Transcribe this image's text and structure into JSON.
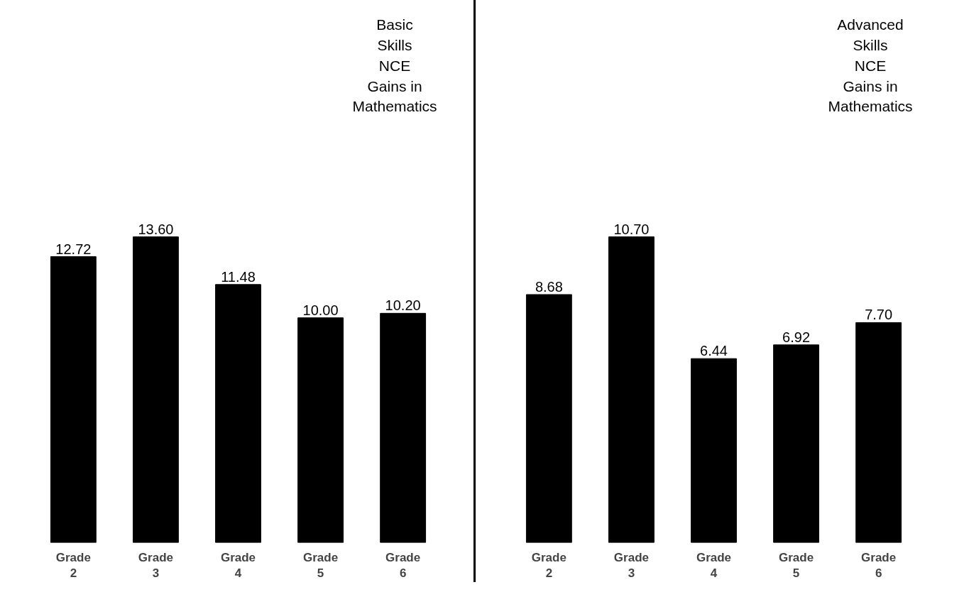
{
  "chart_data": [
    {
      "type": "bar",
      "title": "Basic\nSkills\nNCE\nGains in\nMathematics",
      "categories": [
        "Grade 2",
        "Grade 3",
        "Grade 4",
        "Grade 5",
        "Grade 6"
      ],
      "values": [
        12.72,
        13.6,
        11.48,
        10.0,
        10.2
      ],
      "value_labels": [
        "12.72",
        "13.60",
        "11.48",
        "10.00",
        "10.20"
      ],
      "color": "#000000",
      "grid": false,
      "tick_labels": "x"
    },
    {
      "type": "bar",
      "title": "Advanced\nSkills\nNCE\nGains in\nMathematics",
      "categories": [
        "Grade 2",
        "Grade 3",
        "Grade 4",
        "Grade 5",
        "Grade 6"
      ],
      "values": [
        8.68,
        10.7,
        6.44,
        6.92,
        7.7
      ],
      "value_labels": [
        "8.68",
        "10.70",
        "6.44",
        "6.92",
        "7.70"
      ],
      "color": "#000000",
      "grid": false,
      "tick_labels": "x"
    }
  ]
}
